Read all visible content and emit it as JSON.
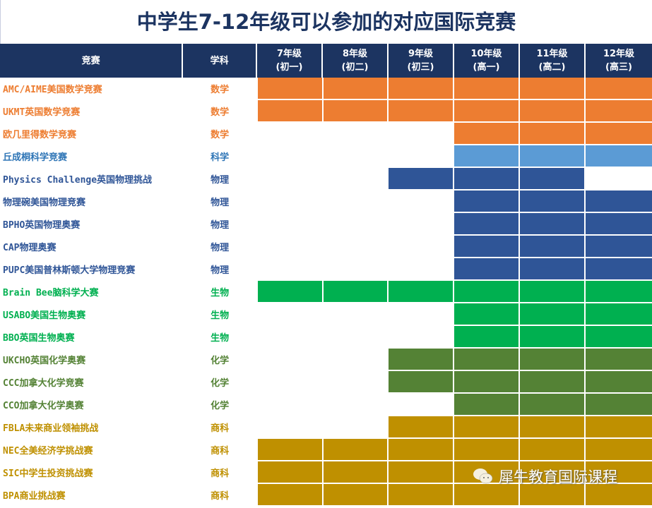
{
  "chart_data": {
    "type": "table",
    "title": "中学生7-12年级可以参加的对应国际竞赛",
    "headers": {
      "competition": "竞赛",
      "subject": "学科",
      "grades": [
        [
          "7年级",
          "(初一)"
        ],
        [
          "8年级",
          "(初二)"
        ],
        [
          "9年级",
          "(初三)"
        ],
        [
          "10年级",
          "(高一)"
        ],
        [
          "11年级",
          "(高二)"
        ],
        [
          "12年级",
          "(高三)"
        ]
      ]
    },
    "colors": {
      "orange": "#ED7D31",
      "lightblue": "#5B9BD5",
      "blue": "#2F5597",
      "green": "#00B050",
      "olive": "#548235",
      "gold": "#BF9000"
    },
    "rows": [
      {
        "name": "AMC/AIME美国数学竞赛",
        "subject": "数学",
        "color": "orange",
        "grades": [
          7,
          8,
          9,
          10,
          11,
          12
        ]
      },
      {
        "name": "UKMT英国数学竞赛",
        "subject": "数学",
        "color": "orange",
        "grades": [
          7,
          8,
          9,
          10,
          11,
          12
        ]
      },
      {
        "name": "欧几里得数学竞赛",
        "subject": "数学",
        "color": "orange",
        "grades": [
          10,
          11,
          12
        ]
      },
      {
        "name": "丘成桐科学竞赛",
        "subject": "科学",
        "color": "lightblue",
        "grades": [
          10,
          11,
          12
        ]
      },
      {
        "name": "Physics Challenge英国物理挑战",
        "subject": "物理",
        "color": "blue",
        "grades": [
          9,
          10,
          11
        ]
      },
      {
        "name": "物理碗美国物理竞赛",
        "subject": "物理",
        "color": "blue",
        "grades": [
          10,
          11,
          12
        ]
      },
      {
        "name": "BPHO英国物理奥赛",
        "subject": "物理",
        "color": "blue",
        "grades": [
          10,
          11,
          12
        ]
      },
      {
        "name": "CAP物理奥赛",
        "subject": "物理",
        "color": "blue",
        "grades": [
          10,
          11,
          12
        ]
      },
      {
        "name": "PUPC美国普林斯顿大学物理竞赛",
        "subject": "物理",
        "color": "blue",
        "grades": [
          10,
          11,
          12
        ]
      },
      {
        "name": "Brain Bee脑科学大赛",
        "subject": "生物",
        "color": "green",
        "grades": [
          7,
          8,
          9,
          10,
          11,
          12
        ]
      },
      {
        "name": "USABO美国生物奥赛",
        "subject": "生物",
        "color": "green",
        "grades": [
          10,
          11,
          12
        ]
      },
      {
        "name": "BBO英国生物奥赛",
        "subject": "生物",
        "color": "green",
        "grades": [
          10,
          11,
          12
        ]
      },
      {
        "name": "UKCHO英国化学奥赛",
        "subject": "化学",
        "color": "olive",
        "grades": [
          9,
          10,
          11,
          12
        ]
      },
      {
        "name": "CCC加拿大化学竞赛",
        "subject": "化学",
        "color": "olive",
        "grades": [
          9,
          10,
          11,
          12
        ]
      },
      {
        "name": "CCO加拿大化学奥赛",
        "subject": "化学",
        "color": "olive",
        "grades": [
          10,
          11,
          12
        ]
      },
      {
        "name": "FBLA未来商业领袖挑战",
        "subject": "商科",
        "color": "gold",
        "grades": [
          9,
          10,
          11,
          12
        ]
      },
      {
        "name": "NEC全美经济学挑战赛",
        "subject": "商科",
        "color": "gold",
        "grades": [
          7,
          8,
          9,
          10,
          11,
          12
        ]
      },
      {
        "name": "SIC中学生投资挑战赛",
        "subject": "商科",
        "color": "gold",
        "grades": [
          7,
          8,
          9,
          10,
          11,
          12
        ]
      },
      {
        "name": "BPA商业挑战赛",
        "subject": "商科",
        "color": "gold",
        "grades": [
          7,
          8,
          9,
          10,
          11,
          12
        ]
      }
    ]
  },
  "watermark": "犀牛教育国际课程"
}
